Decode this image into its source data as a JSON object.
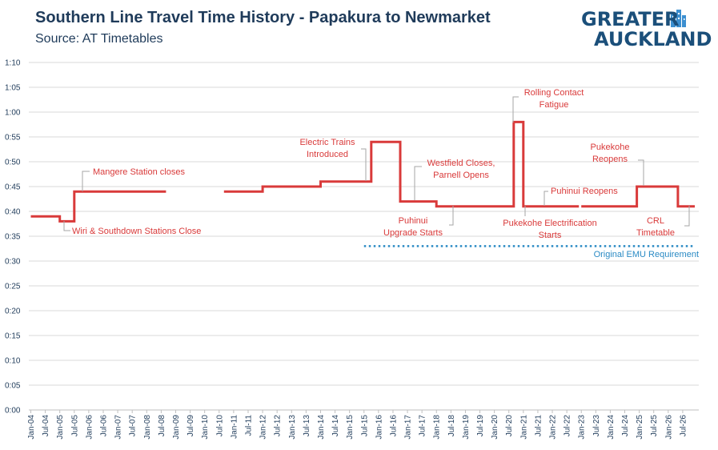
{
  "header": {
    "title": "Southern Line Travel Time History - Papakura to Newmarket",
    "subtitle": "Source: AT Timetables",
    "logo_line1": "GREATER",
    "logo_line2": "AUCKLAND"
  },
  "colors": {
    "series": "#d93a3a",
    "reference": "#2a8ac4",
    "title": "#1f3b5a",
    "logo": "#1b4f7a",
    "grid": "#d9d9d9"
  },
  "chart_data": {
    "type": "line",
    "title": "Southern Line Travel Time History - Papakura to Newmarket",
    "subtitle": "Source: AT Timetables",
    "y_unit": "minutes",
    "ylim": [
      0,
      70
    ],
    "ytick_labels": [
      "0:00",
      "0:05",
      "0:10",
      "0:15",
      "0:20",
      "0:25",
      "0:30",
      "0:35",
      "0:40",
      "0:45",
      "0:50",
      "0:55",
      "1:00",
      "1:05",
      "1:10"
    ],
    "xtick_labels": [
      "Jan-04",
      "Jul-04",
      "Jan-05",
      "Jul-05",
      "Jan-06",
      "Jul-06",
      "Jan-07",
      "Jul-07",
      "Jan-08",
      "Jul-08",
      "Jan-09",
      "Jul-09",
      "Jan-10",
      "Jul-10",
      "Jan-11",
      "Jul-11",
      "Jan-12",
      "Jul-12",
      "Jan-13",
      "Jul-13",
      "Jan-14",
      "Jul-14",
      "Jan-15",
      "Jul-15",
      "Jan-16",
      "Jul-16",
      "Jan-17",
      "Jul-17",
      "Jan-18",
      "Jul-18",
      "Jan-19",
      "Jul-19",
      "Jan-20",
      "Jul-20",
      "Jan-21",
      "Jul-21",
      "Jan-22",
      "Jul-22",
      "Jan-23",
      "Jul-23",
      "Jan-24",
      "Jul-24",
      "Jan-25",
      "Jul-25",
      "Jan-26",
      "Jul-26"
    ],
    "xlim": [
      "2004-01",
      "2026-12"
    ],
    "grid": "horizontal",
    "series": [
      {
        "segments": [
          [
            [
              "2004-01",
              39
            ],
            [
              "2005-01",
              39
            ],
            [
              "2005-01",
              38
            ],
            [
              "2005-07",
              38
            ],
            [
              "2005-07",
              44
            ],
            [
              "2008-09",
              44
            ]
          ],
          [
            [
              "2010-09",
              44
            ],
            [
              "2012-01",
              44
            ],
            [
              "2012-01",
              45
            ],
            [
              "2014-01",
              45
            ],
            [
              "2014-01",
              46
            ],
            [
              "2015-10",
              46
            ],
            [
              "2015-10",
              54
            ],
            [
              "2016-10",
              54
            ],
            [
              "2016-10",
              42
            ],
            [
              "2018-01",
              42
            ],
            [
              "2018-01",
              41
            ],
            [
              "2020-09",
              41
            ],
            [
              "2020-09",
              58
            ],
            [
              "2021-01",
              58
            ],
            [
              "2021-01",
              41
            ],
            [
              "2022-12",
              41
            ]
          ],
          [
            [
              "2023-01",
              41
            ],
            [
              "2024-12",
              41
            ],
            [
              "2024-12",
              45
            ],
            [
              "2026-05",
              45
            ],
            [
              "2026-05",
              41
            ],
            [
              "2026-12",
              41
            ]
          ]
        ]
      },
      {
        "name": "Original EMU Requirement",
        "reference_value": 33,
        "x_range": [
          "2015-07",
          "2026-12"
        ]
      }
    ],
    "annotations": [
      {
        "lines": [
          "Wiri & Southdown Stations Close"
        ],
        "point": [
          "2005-01",
          38
        ],
        "side": "below"
      },
      {
        "lines": [
          "Mangere Station closes"
        ],
        "point": [
          "2005-07",
          44
        ],
        "side": "above"
      },
      {
        "lines": [
          "Electric Trains",
          "Introduced"
        ],
        "point": [
          "2015-10",
          46
        ],
        "side": "above"
      },
      {
        "lines": [
          "Westfield Closes,",
          "Parnell Opens"
        ],
        "point": [
          "2016-10",
          42
        ],
        "side": "above"
      },
      {
        "lines": [
          "Puhinui",
          "Upgrade Starts"
        ],
        "point": [
          "2018-01",
          41
        ],
        "side": "below"
      },
      {
        "lines": [
          "Rolling Contact",
          "Fatigue"
        ],
        "point": [
          "2020-09",
          58
        ],
        "side": "above"
      },
      {
        "lines": [
          "Puhinui Reopens"
        ],
        "point": [
          "2021-07",
          41
        ],
        "side": "above"
      },
      {
        "lines": [
          "Pukekohe Electrification",
          "Starts"
        ],
        "point": [
          "2021-01",
          41
        ],
        "side": "below"
      },
      {
        "lines": [
          "Pukekohe",
          "Reopens"
        ],
        "point": [
          "2024-12",
          45
        ],
        "side": "above"
      },
      {
        "lines": [
          "CRL",
          "Timetable"
        ],
        "point": [
          "2026-05",
          41
        ],
        "side": "below"
      },
      {
        "lines": [
          "Original EMU Requirement"
        ],
        "point": [
          "2026-12",
          33
        ],
        "side": "below"
      }
    ]
  }
}
